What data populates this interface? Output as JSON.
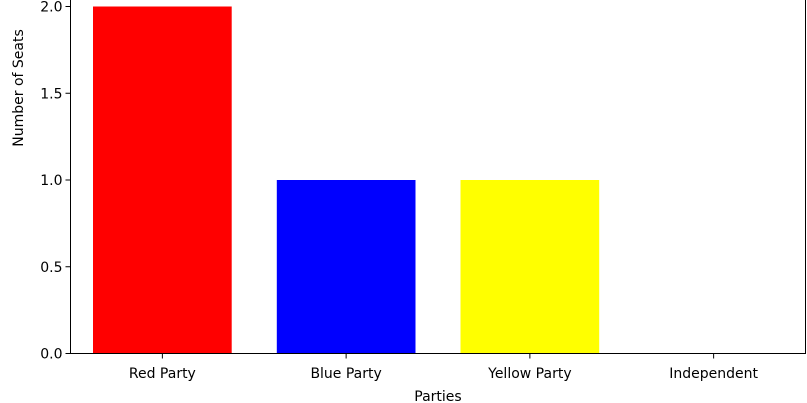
{
  "chart_data": {
    "type": "bar",
    "categories": [
      "Red Party",
      "Blue Party",
      "Yellow Party",
      "Independent"
    ],
    "values": [
      2,
      1,
      1,
      0
    ],
    "colors": [
      "#ff0000",
      "#0000ff",
      "#ffff00",
      "#ffa500"
    ],
    "title": "",
    "xlabel": "Parties",
    "ylabel": "Number of Seats",
    "ylim": [
      0,
      2.05
    ],
    "yticks": [
      0.0,
      0.5,
      1.0,
      1.5,
      2.0
    ],
    "ytick_labels": [
      "0.0",
      "0.5",
      "1.0",
      "1.5",
      "2.0"
    ],
    "grid": false,
    "legend": "none"
  }
}
